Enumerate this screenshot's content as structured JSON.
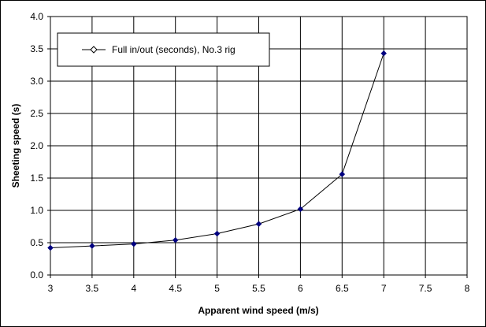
{
  "chart_data": {
    "type": "line",
    "title": "",
    "xlabel": "Apparent wind speed (m/s)",
    "ylabel": "Sheeting speed (s)",
    "xlim": [
      3,
      8
    ],
    "ylim": [
      0,
      4
    ],
    "xticks": [
      3,
      3.5,
      4,
      4.5,
      5,
      5.5,
      6,
      6.5,
      7,
      7.5,
      8
    ],
    "yticks": [
      0,
      0.5,
      1,
      1.5,
      2,
      2.5,
      3,
      3.5,
      4
    ],
    "xtick_labels": [
      "3",
      "3.5",
      "4",
      "4.5",
      "5",
      "5.5",
      "6",
      "6.5",
      "7",
      "7.5",
      "8"
    ],
    "ytick_labels": [
      "0.0",
      "0.5",
      "1.0",
      "1.5",
      "2.0",
      "2.5",
      "3.0",
      "3.5",
      "4.0"
    ],
    "grid": true,
    "legend_position": "top-left",
    "series": [
      {
        "name": "Full in/out (seconds), No.3 rig",
        "color": "#000080",
        "x": [
          3,
          3.5,
          4,
          4.5,
          5,
          5.5,
          6,
          6.5,
          7
        ],
        "y": [
          0.42,
          0.45,
          0.48,
          0.54,
          0.64,
          0.79,
          1.02,
          1.56,
          3.43
        ]
      }
    ]
  }
}
